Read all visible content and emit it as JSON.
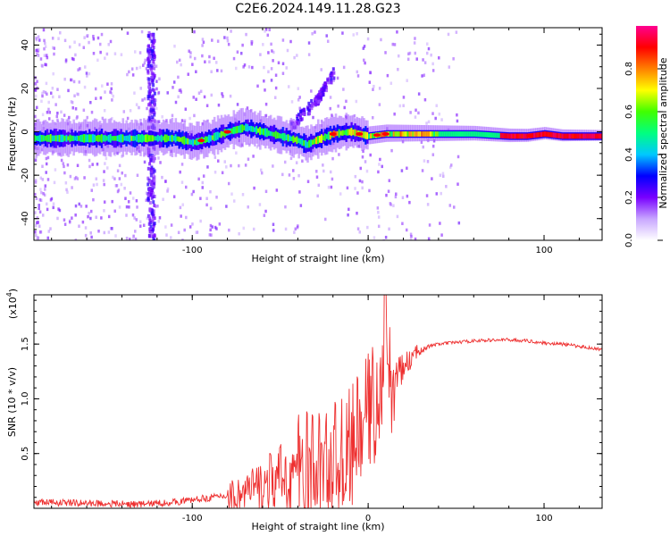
{
  "title": "C2E6.2024.149.11.28.G23",
  "chart_data": [
    {
      "type": "heatmap",
      "xlabel": "Height of straight line (km)",
      "ylabel": "Frequency (Hz)",
      "xlim": [
        -190,
        133
      ],
      "ylim": [
        -50,
        48
      ],
      "xticks": [
        "-100",
        "0",
        "100"
      ],
      "xtick_values": [
        -100,
        0,
        100
      ],
      "yticks": [
        "-40",
        "-20",
        "0",
        "20",
        "40"
      ],
      "ytick_values": [
        -40,
        -20,
        0,
        20,
        40
      ],
      "ridge": {
        "x": [
          -190,
          -170,
          -150,
          -130,
          -110,
          -100,
          -90,
          -80,
          -70,
          -60,
          -50,
          -40,
          -35,
          -30,
          -20,
          -10,
          0,
          10,
          20,
          40,
          60,
          80,
          90,
          100,
          110,
          133
        ],
        "y": [
          -3,
          -3,
          -3,
          -3,
          -3,
          -5,
          -3,
          0,
          2,
          0,
          -2,
          -4,
          -6,
          -4,
          -1,
          0,
          -2,
          -1,
          -1,
          -1,
          -1,
          -2,
          -2,
          -1,
          -2,
          -2
        ]
      },
      "branch": {
        "x": [
          -45,
          -30,
          -20
        ],
        "y": [
          3,
          15,
          28
        ]
      },
      "colorbar": {
        "label": "Normalized spectral amplitude",
        "ticks": [
          "0.0",
          "0.2",
          "0.4",
          "0.6",
          "0.8"
        ],
        "tick_values": [
          0.0,
          0.2,
          0.4,
          0.6,
          0.8
        ],
        "range": [
          0,
          1
        ],
        "colors": [
          "#ffffff",
          "#c8a6ff",
          "#7800ff",
          "#0000ff",
          "#00c8ff",
          "#00ff80",
          "#40ff00",
          "#ffff00",
          "#ff8000",
          "#ff0000",
          "#ff0090"
        ]
      }
    },
    {
      "type": "line",
      "xlabel": "Height of straight line (km)",
      "ylabel": "SNR (10 * v/v)",
      "exponent_label": "(x10",
      "exponent_power": "4",
      "exponent_close": ")",
      "xlim": [
        -190,
        133
      ],
      "ylim": [
        0,
        1.95
      ],
      "xticks": [
        "-100",
        "0",
        "100"
      ],
      "xtick_values": [
        -100,
        0,
        100
      ],
      "yticks": [
        "0.5",
        "1.0",
        "1.5"
      ],
      "ytick_values": [
        0.5,
        1.0,
        1.5
      ],
      "color": "#ee3030",
      "series": [
        {
          "x": [
            -190,
            -160,
            -130,
            -110,
            -100,
            -90,
            -80,
            -70,
            -60,
            -50,
            -40,
            -30,
            -20,
            -10,
            -5,
            0,
            5,
            10,
            15,
            20,
            25,
            30,
            40,
            60,
            80,
            90,
            100,
            110,
            120,
            133
          ],
          "y": [
            0.06,
            0.05,
            0.04,
            0.06,
            0.08,
            0.1,
            0.12,
            0.16,
            0.22,
            0.3,
            0.38,
            0.42,
            0.48,
            0.6,
            0.75,
            0.95,
            1.05,
            1.15,
            1.2,
            1.28,
            1.38,
            1.46,
            1.5,
            1.53,
            1.54,
            1.53,
            1.51,
            1.5,
            1.48,
            1.45
          ]
        }
      ]
    }
  ]
}
